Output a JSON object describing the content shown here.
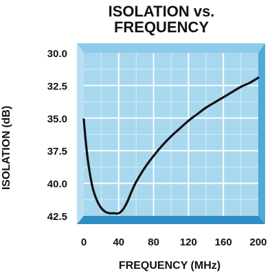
{
  "chart_data": {
    "type": "line",
    "title_lines": [
      "ISOLATION vs.",
      "FREQUENCY"
    ],
    "xlabel": "FREQUENCY (MHz)",
    "ylabel": "ISOLATION (dB)",
    "xlim": [
      0,
      200
    ],
    "ylim": [
      30.0,
      42.5
    ],
    "y_inverted": true,
    "x_ticks": [
      "0",
      "40",
      "80",
      "120",
      "160",
      "200"
    ],
    "y_ticks": [
      "30.0",
      "32.5",
      "35.0",
      "37.5",
      "40.0",
      "42.5"
    ],
    "grid": true,
    "colors": {
      "plot_bg": "#a8d8ee",
      "grid": "#ffffff",
      "frame": "#4fa9d8",
      "line": "#111111"
    },
    "series": [
      {
        "x": [
          0,
          2,
          5,
          10,
          15,
          20,
          25,
          30,
          35,
          40,
          45,
          50,
          55,
          60,
          70,
          80,
          90,
          100,
          110,
          120,
          130,
          140,
          150,
          160,
          170,
          180,
          190,
          200
        ],
        "y": [
          35.1,
          36.6,
          38.4,
          40.3,
          41.3,
          41.9,
          42.2,
          42.3,
          42.3,
          42.3,
          42.0,
          41.4,
          40.6,
          39.9,
          38.8,
          37.9,
          37.1,
          36.4,
          35.8,
          35.2,
          34.7,
          34.2,
          33.8,
          33.4,
          33.0,
          32.6,
          32.3,
          31.9
        ]
      }
    ]
  }
}
